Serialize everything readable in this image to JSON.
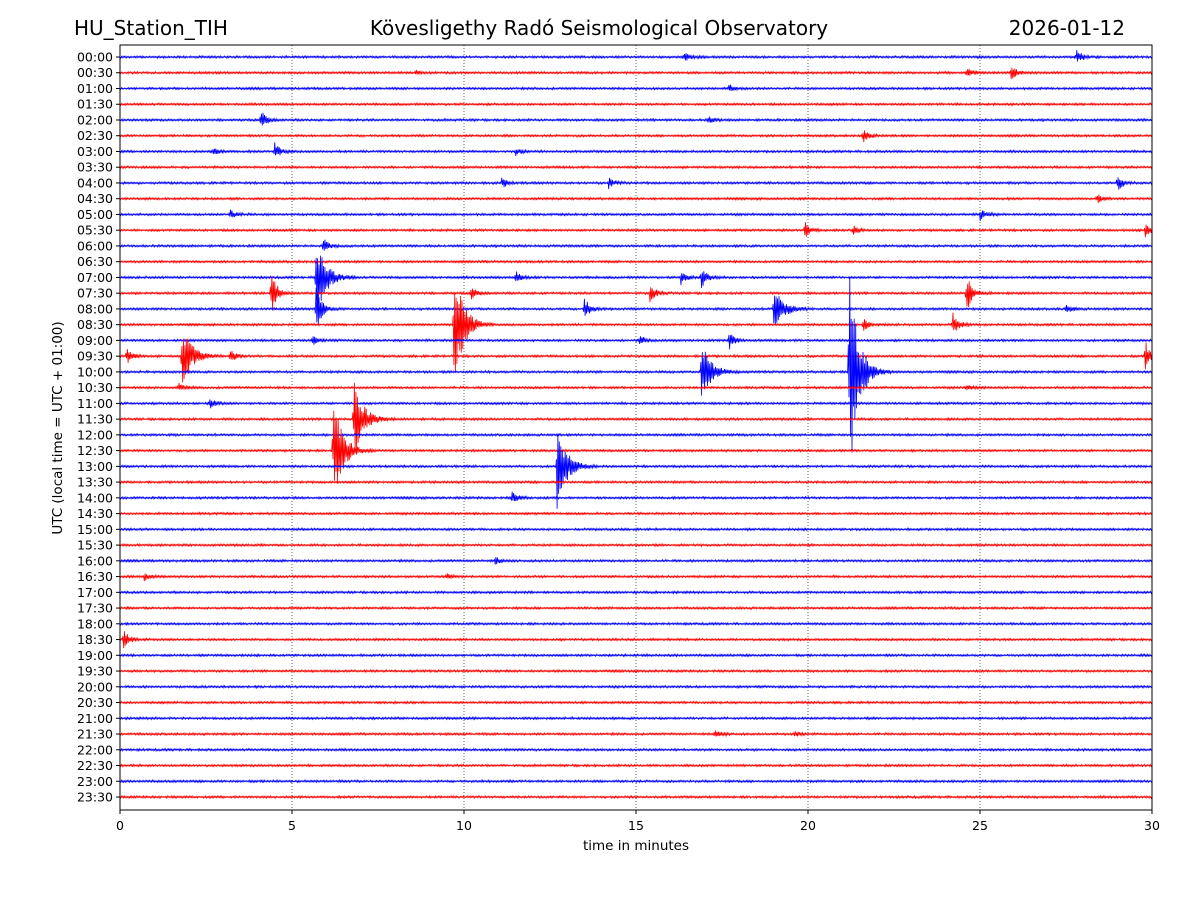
{
  "header": {
    "station": "HU_Station_TIH",
    "observatory": "Kövesligethy Radó Seismological Observatory",
    "date": "2026-01-12"
  },
  "chart_data": {
    "type": "line",
    "title": "Kövesligethy Radó Seismological Observatory",
    "xlabel": "time in minutes",
    "ylabel": "UTC (local time = UTC + 01:00)",
    "xlim": [
      0,
      30
    ],
    "x_ticks": [
      "0",
      "5",
      "10",
      "15",
      "20",
      "25",
      "30"
    ],
    "x_tick_values": [
      0,
      5,
      10,
      15,
      20,
      25,
      30
    ],
    "grid": "vertical dotted at x ticks",
    "colors": {
      "hour": "#0000ff",
      "half_hour": "#ff0000"
    },
    "amplitude_units": "relative (trace spacings)",
    "rows": [
      {
        "label": "00:00",
        "events": [
          [
            16.4,
            0.3
          ],
          [
            27.8,
            0.5
          ]
        ]
      },
      {
        "label": "00:30",
        "events": [
          [
            24.6,
            0.4
          ],
          [
            25.9,
            0.5
          ],
          [
            8.6,
            0.15
          ]
        ]
      },
      {
        "label": "01:00",
        "events": [
          [
            17.7,
            0.25
          ]
        ]
      },
      {
        "label": "01:30",
        "events": []
      },
      {
        "label": "02:00",
        "events": [
          [
            4.1,
            0.6
          ],
          [
            17.1,
            0.25
          ]
        ]
      },
      {
        "label": "02:30",
        "events": [
          [
            21.6,
            0.45
          ]
        ]
      },
      {
        "label": "03:00",
        "events": [
          [
            4.5,
            0.55
          ],
          [
            2.7,
            0.3
          ],
          [
            11.5,
            0.25
          ]
        ]
      },
      {
        "label": "03:30",
        "events": []
      },
      {
        "label": "04:00",
        "events": [
          [
            14.2,
            0.35
          ],
          [
            29.0,
            0.5
          ],
          [
            11.1,
            0.3
          ]
        ]
      },
      {
        "label": "04:30",
        "events": [
          [
            28.4,
            0.3
          ]
        ]
      },
      {
        "label": "05:00",
        "events": [
          [
            3.2,
            0.35
          ],
          [
            25.0,
            0.4
          ]
        ]
      },
      {
        "label": "05:30",
        "events": [
          [
            19.9,
            0.55
          ],
          [
            29.8,
            0.55
          ],
          [
            21.3,
            0.3
          ]
        ]
      },
      {
        "label": "06:00",
        "events": [
          [
            5.9,
            0.5
          ]
        ]
      },
      {
        "label": "06:30",
        "events": []
      },
      {
        "label": "07:00",
        "events": [
          [
            5.7,
            2.8
          ],
          [
            16.9,
            0.7
          ],
          [
            16.3,
            0.5
          ],
          [
            11.5,
            0.4
          ]
        ]
      },
      {
        "label": "07:30",
        "events": [
          [
            4.4,
            1.5
          ],
          [
            10.2,
            0.4
          ],
          [
            15.4,
            0.6
          ],
          [
            24.6,
            1.3
          ]
        ]
      },
      {
        "label": "08:00",
        "events": [
          [
            5.7,
            1.5
          ],
          [
            13.5,
            0.7
          ],
          [
            19.0,
            1.6
          ],
          [
            27.5,
            0.3
          ]
        ]
      },
      {
        "label": "08:30",
        "events": [
          [
            9.7,
            4.3
          ],
          [
            21.6,
            0.4
          ],
          [
            24.2,
            0.8
          ]
        ]
      },
      {
        "label": "09:00",
        "events": [
          [
            17.7,
            0.6
          ],
          [
            15.1,
            0.3
          ],
          [
            5.6,
            0.3
          ]
        ]
      },
      {
        "label": "09:30",
        "events": [
          [
            1.8,
            2.2
          ],
          [
            0.2,
            0.5
          ],
          [
            3.2,
            0.4
          ],
          [
            29.8,
            1.0
          ]
        ]
      },
      {
        "label": "10:00",
        "events": [
          [
            16.9,
            2.0
          ],
          [
            21.2,
            7.0
          ]
        ]
      },
      {
        "label": "10:30",
        "events": [
          [
            1.7,
            0.3
          ],
          [
            24.6,
            0.2
          ]
        ]
      },
      {
        "label": "11:00",
        "events": [
          [
            2.6,
            0.4
          ]
        ]
      },
      {
        "label": "11:30",
        "events": [
          [
            6.8,
            2.6
          ]
        ]
      },
      {
        "label": "12:00",
        "events": []
      },
      {
        "label": "12:30",
        "events": [
          [
            6.2,
            3.5
          ]
        ]
      },
      {
        "label": "13:00",
        "events": [
          [
            12.7,
            2.8
          ]
        ]
      },
      {
        "label": "13:30",
        "events": []
      },
      {
        "label": "14:00",
        "events": [
          [
            11.4,
            0.4
          ]
        ]
      },
      {
        "label": "14:30",
        "events": []
      },
      {
        "label": "15:00",
        "events": []
      },
      {
        "label": "15:30",
        "events": []
      },
      {
        "label": "16:00",
        "events": [
          [
            10.9,
            0.25
          ]
        ]
      },
      {
        "label": "16:30",
        "events": [
          [
            0.7,
            0.25
          ],
          [
            9.5,
            0.2
          ]
        ]
      },
      {
        "label": "17:00",
        "events": []
      },
      {
        "label": "17:30",
        "events": []
      },
      {
        "label": "18:00",
        "events": []
      },
      {
        "label": "18:30",
        "events": [
          [
            0.1,
            0.7
          ]
        ]
      },
      {
        "label": "19:00",
        "events": []
      },
      {
        "label": "19:30",
        "events": []
      },
      {
        "label": "20:00",
        "events": []
      },
      {
        "label": "20:30",
        "events": []
      },
      {
        "label": "21:00",
        "events": []
      },
      {
        "label": "21:30",
        "events": [
          [
            17.3,
            0.3
          ],
          [
            19.6,
            0.2
          ]
        ]
      },
      {
        "label": "22:00",
        "events": []
      },
      {
        "label": "22:30",
        "events": []
      },
      {
        "label": "23:00",
        "events": []
      },
      {
        "label": "23:30",
        "events": []
      }
    ]
  }
}
